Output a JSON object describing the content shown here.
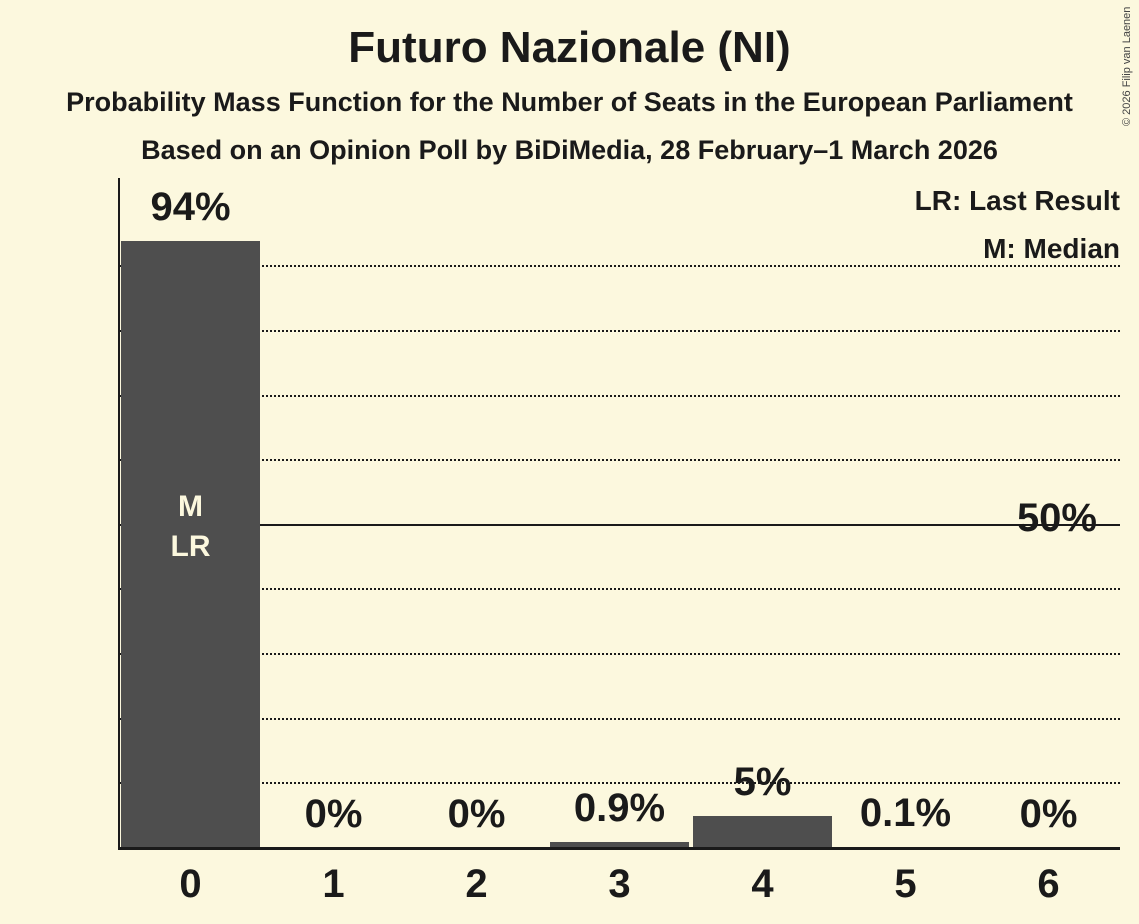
{
  "header": {
    "title": "Futuro Nazionale (NI)",
    "subtitle": "Probability Mass Function for the Number of Seats in the European Parliament",
    "poll_line": "Based on an Opinion Poll by BiDiMedia, 28 February–1 March 2026"
  },
  "legend": {
    "last_result": "LR: Last Result",
    "median": "M: Median"
  },
  "copyright": "© 2026 Filip van Laenen",
  "colors": {
    "background": "#FCF8DE",
    "bar": "#4E4E4E",
    "text": "#1A1A1A",
    "bar_annotation_text": "#FCF8DE"
  },
  "chart_data": {
    "type": "bar",
    "title": "Futuro Nazionale (NI)",
    "categories": [
      "0",
      "1",
      "2",
      "3",
      "4",
      "5",
      "6"
    ],
    "values": [
      94,
      0,
      0,
      0.9,
      5,
      0.1,
      0
    ],
    "value_labels": [
      "94%",
      "0%",
      "0%",
      "0.9%",
      "5%",
      "0.1%",
      "0%"
    ],
    "ylim": [
      0,
      100
    ],
    "y_axis": {
      "tick_label": "50%",
      "tick_value": 50
    },
    "gridlines": {
      "dotted_percent": [
        10,
        20,
        30,
        40,
        60,
        70,
        80,
        90
      ],
      "solid_percent": 50,
      "grid": "on"
    },
    "annotations": {
      "bar_index": 0,
      "lines": [
        "M",
        "LR"
      ]
    },
    "legend_position": "top-right",
    "xlabel": "",
    "ylabel": ""
  }
}
